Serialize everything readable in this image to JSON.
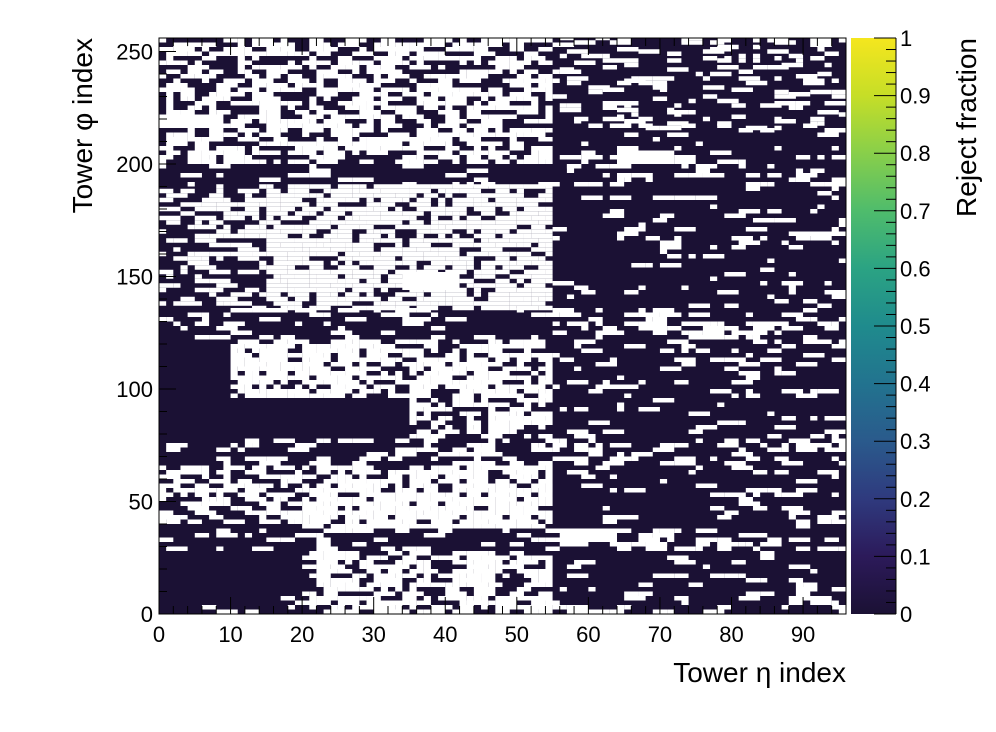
{
  "chart_data": {
    "type": "heatmap",
    "xlabel": "Tower η index",
    "ylabel": "Tower φ index",
    "zlabel": "Reject fraction",
    "xlim": [
      0,
      96
    ],
    "ylim": [
      0,
      256
    ],
    "zlim": [
      0,
      1
    ],
    "x_ticks": [
      0,
      10,
      20,
      30,
      40,
      50,
      60,
      70,
      80,
      90
    ],
    "y_ticks": [
      0,
      50,
      100,
      150,
      200,
      250
    ],
    "z_ticks": [
      0,
      0.1,
      0.2,
      0.3,
      0.4,
      0.5,
      0.6,
      0.7,
      0.8,
      0.9,
      1
    ],
    "colormap": "viridis",
    "empty_color": "#ffffff",
    "background_value": 0,
    "cell_size": [
      1,
      2
    ],
    "description": "Towers with no entries render white; most towers have reject fraction 0 (dark purple). Empty towers cluster in horizontal bands, densest for eta 20-55.",
    "empty_bands": [
      {
        "phi": [
          0,
          8
        ],
        "eta": [
          0,
          96
        ],
        "density": 0.1
      },
      {
        "phi": [
          0,
          28
        ],
        "eta": [
          20,
          55
        ],
        "density": 0.55
      },
      {
        "phi": [
          28,
          38
        ],
        "eta": [
          0,
          96
        ],
        "density": 0.12
      },
      {
        "phi": [
          38,
          66
        ],
        "eta": [
          20,
          55
        ],
        "density": 0.7
      },
      {
        "phi": [
          40,
          66
        ],
        "eta": [
          0,
          20
        ],
        "density": 0.3
      },
      {
        "phi": [
          66,
          78
        ],
        "eta": [
          0,
          96
        ],
        "density": 0.18
      },
      {
        "phi": [
          78,
          96
        ],
        "eta": [
          35,
          55
        ],
        "density": 0.45
      },
      {
        "phi": [
          96,
          122
        ],
        "eta": [
          10,
          55
        ],
        "density": 0.6
      },
      {
        "phi": [
          110,
          130
        ],
        "eta": [
          55,
          96
        ],
        "density": 0.15
      },
      {
        "phi": [
          122,
          135
        ],
        "eta": [
          0,
          96
        ],
        "density": 0.12
      },
      {
        "phi": [
          135,
          190
        ],
        "eta": [
          15,
          55
        ],
        "density": 0.65
      },
      {
        "phi": [
          135,
          190
        ],
        "eta": [
          0,
          15
        ],
        "density": 0.3
      },
      {
        "phi": [
          190,
          200
        ],
        "eta": [
          0,
          96
        ],
        "density": 0.1
      },
      {
        "phi": [
          200,
          256
        ],
        "eta": [
          0,
          55
        ],
        "density": 0.45
      },
      {
        "phi": [
          215,
          256
        ],
        "eta": [
          55,
          96
        ],
        "density": 0.12
      },
      {
        "phi": [
          0,
          256
        ],
        "eta": [
          55,
          96
        ],
        "density": 0.08
      }
    ],
    "empty_regions": [
      {
        "eta": [
          0,
          8
        ],
        "phi": [
          216,
          222
        ]
      },
      {
        "eta": [
          64,
          72
        ],
        "phi": [
          200,
          206
        ]
      },
      {
        "eta": [
          56,
          64
        ],
        "phi": [
          32,
          38
        ]
      },
      {
        "eta": [
          34,
          42
        ],
        "phi": [
          144,
          152
        ]
      },
      {
        "eta": [
          88,
          96
        ],
        "phi": [
          168,
          170
        ]
      }
    ]
  }
}
